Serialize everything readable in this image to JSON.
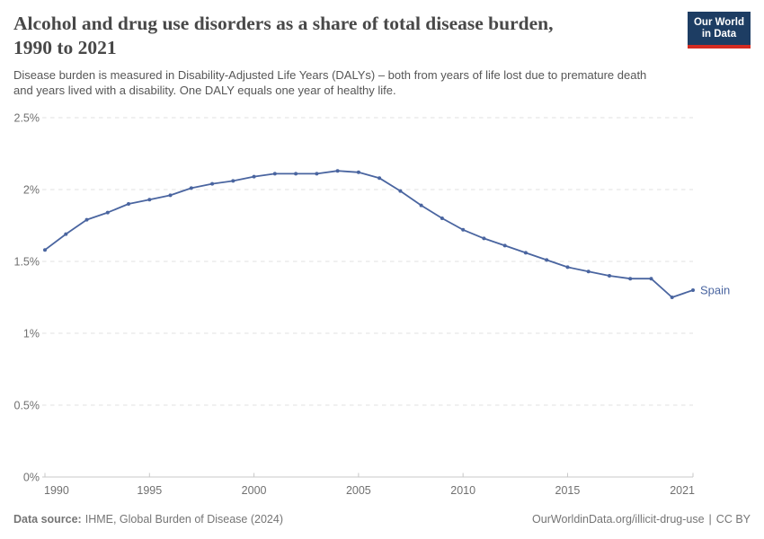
{
  "header": {
    "title_lines": [
      "Alcohol and drug use disorders as a share of total disease burden,",
      "1990 to 2021"
    ],
    "subtitle_lines": [
      "Disease burden is measured in Disability-Adjusted Life Years (DALYs) – both from years of life lost due to premature death",
      "and years lived with a disability. One DALY equals one year of healthy life."
    ],
    "logo": {
      "line1": "Our World",
      "line2": "in Data"
    }
  },
  "chart_data": {
    "type": "line",
    "title": "Alcohol and drug use disorders as a share of total disease burden, 1990 to 2021",
    "entity": "Spain",
    "unit": "%",
    "xlim": [
      1990,
      2021
    ],
    "ylim": [
      0,
      2.5
    ],
    "grid": "horizontal-dashed",
    "legend_position": "line-end-label",
    "x": [
      1990,
      1991,
      1992,
      1993,
      1994,
      1995,
      1996,
      1997,
      1998,
      1999,
      2000,
      2001,
      2002,
      2003,
      2004,
      2005,
      2006,
      2007,
      2008,
      2009,
      2010,
      2011,
      2012,
      2013,
      2014,
      2015,
      2016,
      2017,
      2018,
      2019,
      2020,
      2021
    ],
    "series": [
      {
        "name": "Spain",
        "color": "#4a65a0",
        "values": [
          1.58,
          1.69,
          1.79,
          1.84,
          1.9,
          1.93,
          1.96,
          2.01,
          2.04,
          2.06,
          2.09,
          2.11,
          2.11,
          2.11,
          2.13,
          2.12,
          2.08,
          1.99,
          1.89,
          1.8,
          1.72,
          1.66,
          1.61,
          1.56,
          1.51,
          1.46,
          1.43,
          1.4,
          1.38,
          1.38,
          1.25,
          1.3
        ]
      }
    ],
    "x_ticks": [
      {
        "value": 1990,
        "label": "1990"
      },
      {
        "value": 1995,
        "label": "1995"
      },
      {
        "value": 2000,
        "label": "2000"
      },
      {
        "value": 2005,
        "label": "2005"
      },
      {
        "value": 2010,
        "label": "2010"
      },
      {
        "value": 2015,
        "label": "2015"
      },
      {
        "value": 2021,
        "label": "2021"
      }
    ],
    "y_ticks": [
      {
        "value": 0,
        "label": "0%"
      },
      {
        "value": 0.5,
        "label": "0.5%"
      },
      {
        "value": 1,
        "label": "1%"
      },
      {
        "value": 1.5,
        "label": "1.5%"
      },
      {
        "value": 2,
        "label": "2%"
      },
      {
        "value": 2.5,
        "label": "2.5%"
      }
    ]
  },
  "footer": {
    "source_label": "Data source:",
    "source_text": "IHME, Global Burden of Disease (2024)",
    "link_text": "OurWorldinData.org/illicit-drug-use",
    "separator": "|",
    "license_text": "CC BY"
  },
  "colors": {
    "line": "#4a65a0",
    "logo_bg": "#1d3d63",
    "logo_stripe": "#d42b21",
    "gridline": "#e0e0e0",
    "axis": "#c8c8c8",
    "tick_label": "#707070",
    "title_text": "#484848",
    "subtitle_text": "#565656",
    "footer_text": "#757575"
  }
}
